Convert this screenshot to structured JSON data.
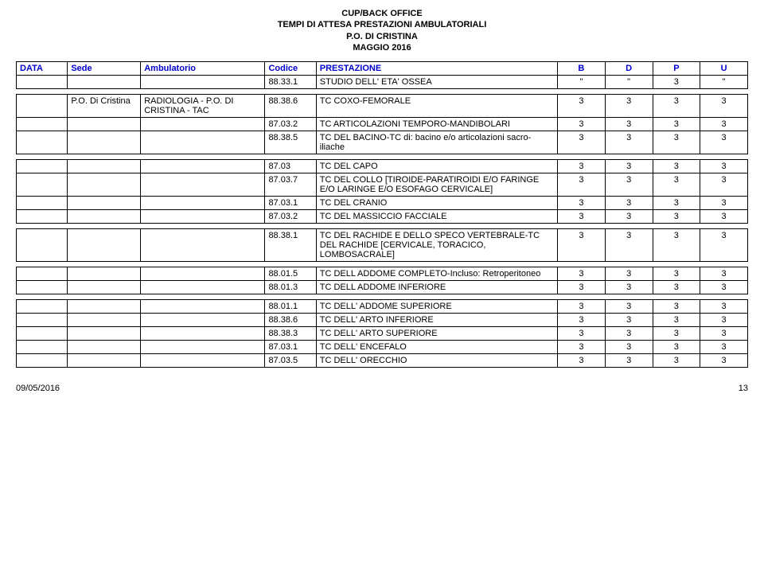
{
  "header": {
    "line1": "CUP/BACK OFFICE",
    "line2": "TEMPI DI ATTESA PRESTAZIONI AMBULATORIALI",
    "line3": "P.O. DI CRISTINA",
    "line4": "MAGGIO 2016"
  },
  "columns": {
    "data": "DATA",
    "sede": "Sede",
    "amb": "Ambulatorio",
    "codice": "Codice",
    "prest": "PRESTAZIONE",
    "b": "B",
    "d": "D",
    "p": "P",
    "u": "U"
  },
  "sections": [
    {
      "top": [
        {
          "data": "",
          "sede": "",
          "amb": "",
          "code": "88.33.1",
          "prest": "STUDIO DELL' ETA' OSSEA",
          "b": "\"",
          "d": "\"",
          "p": "3",
          "u": "\""
        }
      ]
    },
    {
      "rows": [
        {
          "data": "",
          "sede": "P.O. Di Cristina",
          "amb": "RADIOLOGIA - P.O. DI CRISTINA - TAC",
          "code": "88.38.6",
          "prest": "TC COXO-FEMORALE",
          "b": "3",
          "d": "3",
          "p": "3",
          "u": "3"
        },
        {
          "code": "87.03.2",
          "prest": "TC ARTICOLAZIONI TEMPORO-MANDIBOLARI",
          "b": "3",
          "d": "3",
          "p": "3",
          "u": "3"
        },
        {
          "code": "88.38.5",
          "prest": "TC DEL BACINO-TC di: bacino e/o articolazioni sacro-iliache",
          "b": "3",
          "d": "3",
          "p": "3",
          "u": "3"
        }
      ]
    },
    {
      "rows": [
        {
          "code": "87.03",
          "prest": "TC DEL CAPO",
          "b": "3",
          "d": "3",
          "p": "3",
          "u": "3"
        },
        {
          "code": "87.03.7",
          "prest": "TC DEL COLLO [TIROIDE-PARATIROIDI E/O FARINGE E/O LARINGE E/O ESOFAGO CERVICALE]",
          "b": "3",
          "d": "3",
          "p": "3",
          "u": "3"
        },
        {
          "code": "87.03.1",
          "prest": "TC DEL CRANIO",
          "b": "3",
          "d": "3",
          "p": "3",
          "u": "3"
        },
        {
          "code": "87.03.2",
          "prest": "TC DEL MASSICCIO FACCIALE",
          "b": "3",
          "d": "3",
          "p": "3",
          "u": "3"
        }
      ]
    },
    {
      "rows": [
        {
          "code": "88.38.1",
          "prest": "TC DEL RACHIDE E DELLO SPECO VERTEBRALE-TC DEL RACHIDE [CERVICALE, TORACICO, LOMBOSACRALE]",
          "b": "3",
          "d": "3",
          "p": "3",
          "u": "3"
        }
      ]
    },
    {
      "rows": [
        {
          "code": "88.01.5",
          "prest": "TC DELL  ADDOME COMPLETO-Incluso: Retroperitoneo",
          "b": "3",
          "d": "3",
          "p": "3",
          "u": "3"
        },
        {
          "code": "88.01.3",
          "prest": "TC DELL ADDOME INFERIORE",
          "b": "3",
          "d": "3",
          "p": "3",
          "u": "3"
        }
      ]
    },
    {
      "rows": [
        {
          "code": "88.01.1",
          "prest": "TC DELL' ADDOME SUPERIORE",
          "b": "3",
          "d": "3",
          "p": "3",
          "u": "3"
        },
        {
          "code": "88.38.6",
          "prest": "TC DELL' ARTO INFERIORE",
          "b": "3",
          "d": "3",
          "p": "3",
          "u": "3"
        },
        {
          "code": "88.38.3",
          "prest": "TC DELL' ARTO SUPERIORE",
          "b": "3",
          "d": "3",
          "p": "3",
          "u": "3"
        },
        {
          "code": "87.03.1",
          "prest": "TC DELL' ENCEFALO",
          "b": "3",
          "d": "3",
          "p": "3",
          "u": "3"
        },
        {
          "code": "87.03.5",
          "prest": "TC DELL' ORECCHIO",
          "b": "3",
          "d": "3",
          "p": "3",
          "u": "3"
        }
      ]
    }
  ],
  "footer": {
    "date": "09/05/2016",
    "page": "13"
  }
}
